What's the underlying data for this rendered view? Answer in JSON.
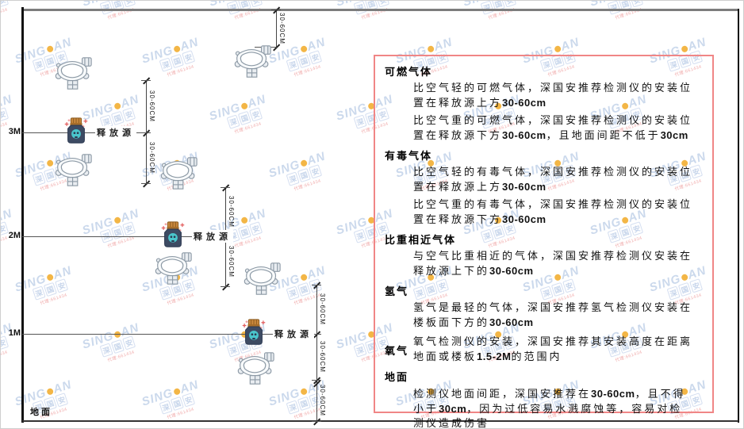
{
  "brand_watermark": {
    "part1": "SING",
    "part2": "AN",
    "cn_chars": [
      "深",
      "国",
      "安"
    ],
    "agent_text": "代理:661434",
    "dot_color": "#f3b33d",
    "text_color": "#c9d7ec"
  },
  "axis": {
    "height_labels": [
      "3M",
      "2M",
      "1M"
    ],
    "ground_label": "地面"
  },
  "labels": {
    "release_source": "释放源",
    "dimension": "30-60CM"
  },
  "panel": {
    "border_color": "#f08686",
    "sections": [
      {
        "title": "可燃气体",
        "paragraphs": [
          "比空气轻的可燃气体，深国安推荐检测仪的安装位置在释放源上方30-60cm",
          "比空气重的可燃气体，深国安推荐检测仪的安装位置在释放源下方30-60cm，且地面间距不低于30cm"
        ]
      },
      {
        "title": "有毒气体",
        "paragraphs": [
          "比空气轻的有毒气体，深国安推荐检测仪的安装位置在释放源上方30-60cm",
          "比空气重的有毒气体，深国安推荐检测仪的安装位置在释放源下方30-60cm"
        ]
      },
      {
        "title": "比重相近气体",
        "paragraphs": [
          "与空气比重相近的气体，深国安推荐检测仪安装在释放源上下的30-60cm"
        ]
      },
      {
        "title": "氢气",
        "paragraphs": [
          "氢气是最轻的气体，深国安推荐氢气检测仪安装在楼板面下方的30-60cm"
        ]
      },
      {
        "title": "氧气",
        "inline": true,
        "paragraphs": [
          "氧气检测仪的安装，深国安推荐其安装高度在距离地面或楼板1.5-2M的范围内"
        ]
      },
      {
        "title": "地面",
        "paragraphs": [
          "检测仪地面间距，深国安推荐在30-60cm，且不得小于30cm，因为过低容易水溅腐蚀等，容易对检测仪造成伤害"
        ]
      }
    ]
  }
}
